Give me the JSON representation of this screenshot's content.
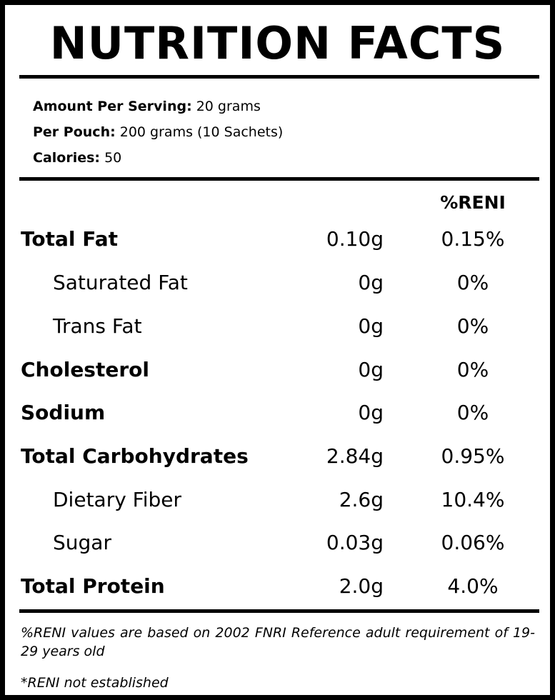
{
  "title": "NUTRITION FACTS",
  "serving": {
    "amount_label": "Amount Per Serving:",
    "amount_value": "20 grams",
    "pouch_label": "Per Pouch:",
    "pouch_value": "200 grams (10 Sachets)",
    "calories_label": "Calories:",
    "calories_value": "50"
  },
  "column_header": "%RENI",
  "nutrients": [
    {
      "name": "Total Fat",
      "amount": "0.10g",
      "reni": "0.15%",
      "level": "main"
    },
    {
      "name": "Saturated Fat",
      "amount": "0g",
      "reni": "0%",
      "level": "sub"
    },
    {
      "name": "Trans Fat",
      "amount": "0g",
      "reni": "0%",
      "level": "sub"
    },
    {
      "name": "Cholesterol",
      "amount": "0g",
      "reni": "0%",
      "level": "main"
    },
    {
      "name": "Sodium",
      "amount": "0g",
      "reni": "0%",
      "level": "main"
    },
    {
      "name": "Total Carbohydrates",
      "amount": "2.84g",
      "reni": "0.95%",
      "level": "main"
    },
    {
      "name": "Dietary Fiber",
      "amount": "2.6g",
      "reni": "10.4%",
      "level": "sub"
    },
    {
      "name": "Sugar",
      "amount": "0.03g",
      "reni": "0.06%",
      "level": "sub"
    },
    {
      "name": "Total Protein",
      "amount": "2.0g",
      "reni": "4.0%",
      "level": "main"
    }
  ],
  "footnotes": {
    "reni_basis": "%RENI values are based on 2002 FNRI Reference adult requirement of 19-29 years old",
    "not_established": "*RENI not established"
  },
  "colors": {
    "text": "#000000",
    "background": "#ffffff",
    "border": "#000000"
  }
}
